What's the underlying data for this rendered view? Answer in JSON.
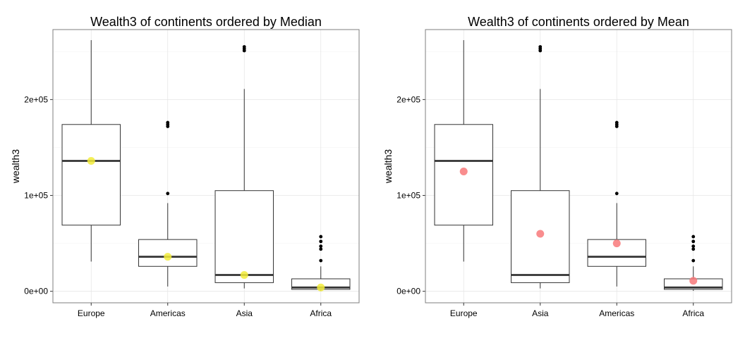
{
  "chart_data": [
    {
      "type": "box",
      "title": "Wealth3 of continents ordered by Median",
      "xlabel": "",
      "ylabel": "wealth3",
      "ylim": [
        -12000,
        273000
      ],
      "yticks": [
        {
          "value": 0,
          "label": "0e+00"
        },
        {
          "value": 100000,
          "label": "1e+05"
        },
        {
          "value": 200000,
          "label": "2e+05"
        }
      ],
      "grid": true,
      "categories": [
        "Europe",
        "Americas",
        "Asia",
        "Africa"
      ],
      "boxes": [
        {
          "category": "Europe",
          "min": 31000,
          "q1": 69000,
          "median": 136000,
          "q3": 174000,
          "max": 262000,
          "outliers": [],
          "point": 136000
        },
        {
          "category": "Americas",
          "min": 5000,
          "q1": 26000,
          "median": 36000,
          "q3": 54000,
          "max": 92000,
          "outliers": [
            102000,
            172000,
            174000,
            176000
          ],
          "point": 36000
        },
        {
          "category": "Asia",
          "min": 3000,
          "q1": 9000,
          "median": 17000,
          "q3": 105000,
          "max": 211000,
          "outliers": [
            251000,
            253000,
            255000
          ],
          "point": 17000
        },
        {
          "category": "Africa",
          "min": 500,
          "q1": 2000,
          "median": 4000,
          "q3": 13000,
          "max": 26000,
          "outliers": [
            32000,
            44000,
            47000,
            52000,
            57000
          ],
          "point": 4000
        }
      ],
      "point_color": "#f2ec3c"
    },
    {
      "type": "box",
      "title": "Wealth3 of continents ordered by Mean",
      "xlabel": "",
      "ylabel": "wealth3",
      "ylim": [
        -12000,
        273000
      ],
      "yticks": [
        {
          "value": 0,
          "label": "0e+00"
        },
        {
          "value": 100000,
          "label": "1e+05"
        },
        {
          "value": 200000,
          "label": "2e+05"
        }
      ],
      "grid": true,
      "categories": [
        "Europe",
        "Asia",
        "Americas",
        "Africa"
      ],
      "boxes": [
        {
          "category": "Europe",
          "min": 31000,
          "q1": 69000,
          "median": 136000,
          "q3": 174000,
          "max": 262000,
          "outliers": [],
          "point": 125000
        },
        {
          "category": "Asia",
          "min": 3000,
          "q1": 9000,
          "median": 17000,
          "q3": 105000,
          "max": 211000,
          "outliers": [
            251000,
            253000,
            255000
          ],
          "point": 60000
        },
        {
          "category": "Americas",
          "min": 5000,
          "q1": 26000,
          "median": 36000,
          "q3": 54000,
          "max": 92000,
          "outliers": [
            102000,
            172000,
            174000,
            176000
          ],
          "point": 50000
        },
        {
          "category": "Africa",
          "min": 500,
          "q1": 2000,
          "median": 4000,
          "q3": 13000,
          "max": 26000,
          "outliers": [
            32000,
            44000,
            47000,
            52000,
            57000
          ],
          "point": 11000
        }
      ],
      "point_color": "#f8797a"
    }
  ]
}
